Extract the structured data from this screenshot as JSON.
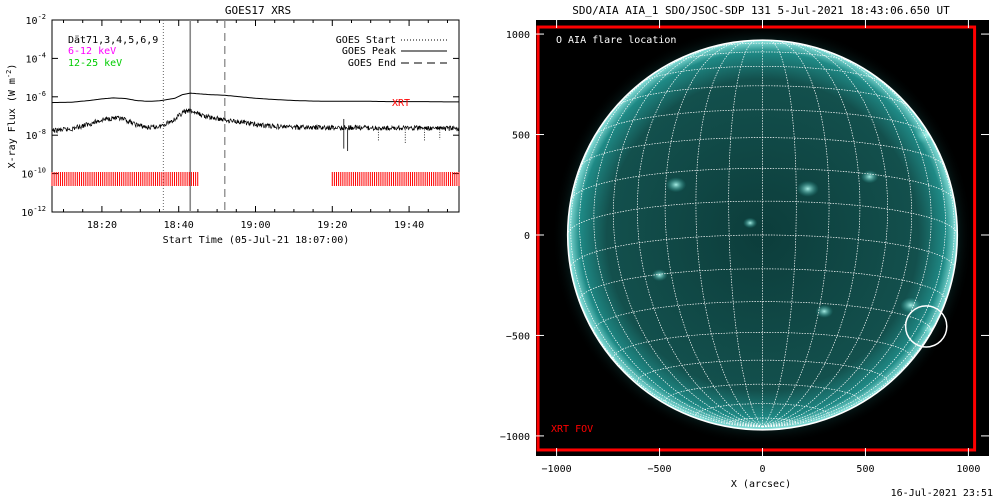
{
  "footer_timestamp": "16-Jul-2021 23:51",
  "colors": {
    "low_channel": "#ff00ff",
    "high_channel": "#00cc00",
    "xrt": "#ff0000",
    "sun": "#1f8a86"
  },
  "chart_data": [
    {
      "type": "line",
      "title": "GOES17 XRS",
      "xlabel": "Start Time (05-Jul-21 18:07:00)",
      "ylabel": "X-ray Flux (W m⁻²)",
      "ylabel_base": "X-ray Flux (W m",
      "ylabel_exp": "-2",
      "ylabel_close": ")",
      "yscale": "log",
      "ylim": [
        1e-12,
        0.01
      ],
      "xlim_minutes": [
        7,
        113
      ],
      "x_ticks": [
        "18:20",
        "18:40",
        "19:00",
        "19:20",
        "19:40"
      ],
      "x_tick_minutes": [
        20,
        40,
        60,
        80,
        100
      ],
      "y_ticks": [
        {
          "base": "10",
          "exp": "-2",
          "value": 0.01
        },
        {
          "base": "10",
          "exp": "-4",
          "value": 0.0001
        },
        {
          "base": "10",
          "exp": "-6",
          "value": 1e-06
        },
        {
          "base": "10",
          "exp": "-8",
          "value": 1e-08
        },
        {
          "base": "10",
          "exp": "-10",
          "value": 1e-10
        },
        {
          "base": "10",
          "exp": "-12",
          "value": 1e-12
        }
      ],
      "channels_label": "Dät71,3,4,5,6,9",
      "legend_left": [
        "6-12 keV",
        "12-25 keV"
      ],
      "legend_right": [
        "GOES Start",
        "GOES Peak",
        "GOES End"
      ],
      "series": [
        {
          "name": "6-12 keV",
          "x_minutes": [
            7,
            12,
            17,
            20,
            23,
            26,
            29,
            32,
            35,
            37,
            39,
            41,
            43,
            45,
            48,
            52,
            56,
            60,
            65,
            70,
            75,
            80,
            85,
            90,
            95,
            100,
            105,
            110,
            113
          ],
          "values": [
            5e-07,
            5.2e-07,
            6.5e-07,
            7.8e-07,
            8.8e-07,
            8.2e-07,
            6.4e-07,
            5.8e-07,
            6.2e-07,
            7.2e-07,
            8.4e-07,
            1.3e-06,
            1.55e-06,
            1.45e-06,
            1.3e-06,
            1.2e-06,
            1e-06,
            8.4e-07,
            7.2e-07,
            6.4e-07,
            6e-07,
            5.8e-07,
            5.8e-07,
            5.8e-07,
            5.6e-07,
            5.6e-07,
            5.6e-07,
            5.4e-07,
            5.4e-07
          ]
        },
        {
          "name": "12-25 keV",
          "x_minutes": [
            7,
            12,
            17,
            20,
            23,
            26,
            29,
            32,
            35,
            37,
            39,
            41,
            43,
            45,
            48,
            52,
            56,
            60,
            65,
            70,
            75,
            80,
            85,
            90,
            95,
            100,
            105,
            110,
            113
          ],
          "values": [
            1.7e-08,
            2.1e-08,
            4e-08,
            6.3e-08,
            8e-08,
            6.2e-08,
            3.5e-08,
            2.5e-08,
            2.8e-08,
            4.4e-08,
            6.8e-08,
            1.5e-07,
            1.9e-07,
            1.3e-07,
            8.5e-08,
            6.3e-08,
            5e-08,
            3.6e-08,
            2.9e-08,
            2.6e-08,
            2.5e-08,
            2.4e-08,
            2.5e-08,
            2.4e-08,
            2.3e-08,
            2.4e-08,
            2.3e-08,
            2.2e-08,
            2.2e-08
          ]
        }
      ],
      "events_minutes": {
        "start": 36,
        "peak": 43,
        "end": 52
      },
      "xrt_label": "XRT",
      "xrt_coverage_minutes": [
        [
          7,
          45
        ],
        [
          80,
          113
        ]
      ]
    },
    {
      "type": "image",
      "title": "SDO/AIA AIA_1 SDO/JSOC-SDP 131  5-Jul-2021 18:43:06.650 UT",
      "xlabel": "X (arcsec)",
      "xlim": [
        -1100,
        1100
      ],
      "ylim": [
        -1100,
        1070
      ],
      "x_ticks": [
        -1000,
        -500,
        0,
        500,
        1000
      ],
      "y_ticks": [
        1000,
        500,
        0,
        -500,
        -1000
      ],
      "legend_label": "O AIA flare location",
      "flare_location_arcsec": [
        795,
        -455
      ],
      "fov_label": "XRT FOV",
      "xrt_fov_arcsec": {
        "x": [
          -1090,
          1030
        ],
        "y": [
          -1070,
          1035
        ]
      },
      "solar_radius_arcsec": 946
    }
  ]
}
